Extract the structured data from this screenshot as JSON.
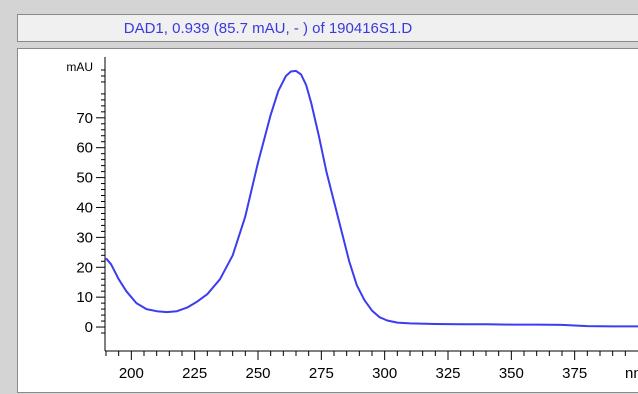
{
  "header": {
    "title": "DAD1, 0.939 (85.7 mAU, - ) of 190416S1.D"
  },
  "colors": {
    "series": "#3c3cf0",
    "title_text": "#3a3adc",
    "axis": "#000000"
  },
  "chart_data": {
    "type": "line",
    "title": "DAD1, 0.939 (85.7 mAU, - ) of 190416S1.D",
    "ylabel": "mAU",
    "xlabel": "nm",
    "xlim": [
      190,
      400
    ],
    "ylim": [
      -3,
      87
    ],
    "xticks": [
      "200",
      "225",
      "250",
      "275",
      "300",
      "325",
      "350",
      "375"
    ],
    "yticks": [
      "0",
      "10",
      "20",
      "30",
      "40",
      "50",
      "60",
      "70"
    ],
    "grid": false,
    "series": [
      {
        "x": [
          190,
          192,
          195,
          198,
          202,
          206,
          210,
          214,
          218,
          222,
          226,
          230,
          235,
          240,
          245,
          250,
          255,
          258,
          261,
          263,
          265,
          267,
          269,
          271,
          274,
          277,
          280,
          283,
          286,
          289,
          292,
          295,
          298,
          301,
          305,
          310,
          320,
          330,
          340,
          350,
          360,
          370,
          375,
          380,
          390,
          400
        ],
        "y": [
          23,
          21,
          16,
          12,
          8,
          6,
          5.3,
          5,
          5.3,
          6.5,
          8.5,
          11,
          16,
          24,
          37,
          55,
          71,
          79,
          84,
          85.5,
          85.7,
          84.5,
          81,
          75,
          64,
          52,
          42,
          32,
          22,
          14,
          9,
          5.5,
          3.3,
          2.2,
          1.5,
          1.2,
          1.0,
          0.9,
          0.9,
          0.8,
          0.8,
          0.7,
          0.5,
          0.3,
          0.2,
          0.2
        ]
      }
    ]
  }
}
